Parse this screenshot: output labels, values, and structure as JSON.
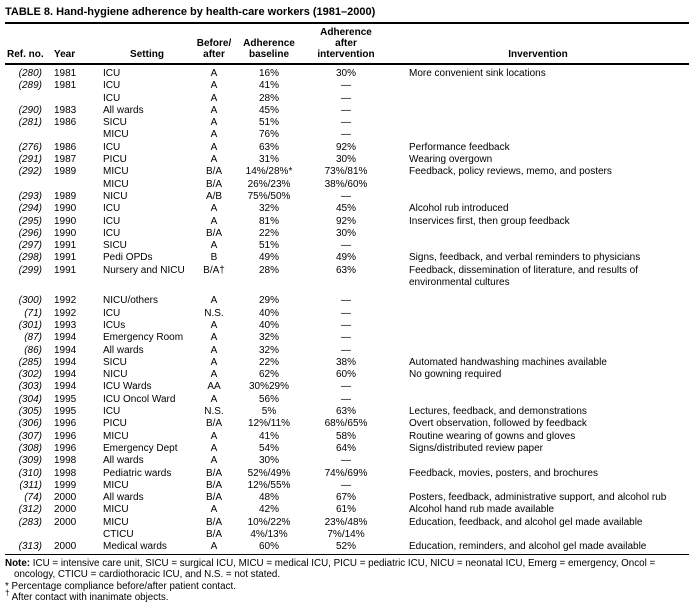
{
  "title": "TABLE 8. Hand-hygiene adherence by health-care workers (1981–2000)",
  "header": {
    "ref": "Ref. no.",
    "year": "Year",
    "setting": "Setting",
    "before_after": "Before/\nafter",
    "baseline": "Adherence\nbaseline",
    "after_intervention": "Adherence\nafter\nintervention",
    "intervention": "Invervention"
  },
  "rows": [
    {
      "ref": "(280)",
      "year": "1981",
      "setting": "ICU",
      "ba": "A",
      "base": "16%",
      "after": "30%",
      "int": "More convenient sink locations"
    },
    {
      "ref": "(289)",
      "year": "1981",
      "setting": "ICU",
      "ba": "A",
      "base": "41%",
      "after": "—",
      "int": ""
    },
    {
      "ref": "",
      "year": "",
      "setting": "ICU",
      "ba": "A",
      "base": "28%",
      "after": "—",
      "int": ""
    },
    {
      "ref": "(290)",
      "year": "1983",
      "setting": "All wards",
      "ba": "A",
      "base": "45%",
      "after": "—",
      "int": ""
    },
    {
      "ref": "(281)",
      "year": "1986",
      "setting": "SICU",
      "ba": "A",
      "base": "51%",
      "after": "—",
      "int": ""
    },
    {
      "ref": "",
      "year": "",
      "setting": "MICU",
      "ba": "A",
      "base": "76%",
      "after": "—",
      "int": ""
    },
    {
      "ref": "(276)",
      "year": "1986",
      "setting": "ICU",
      "ba": "A",
      "base": "63%",
      "after": "92%",
      "int": "Performance feedback"
    },
    {
      "ref": "(291)",
      "year": "1987",
      "setting": "PICU",
      "ba": "A",
      "base": "31%",
      "after": "30%",
      "int": "Wearing overgown"
    },
    {
      "ref": "(292)",
      "year": "1989",
      "setting": "MICU",
      "ba": "B/A",
      "base": "14%/28%*",
      "after": "73%/81%",
      "int": "Feedback, policy reviews, memo, and posters"
    },
    {
      "ref": "",
      "year": "",
      "setting": "MICU",
      "ba": "B/A",
      "base": "26%/23%",
      "after": "38%/60%",
      "int": ""
    },
    {
      "ref": "(293)",
      "year": "1989",
      "setting": "NICU",
      "ba": "A/B",
      "base": "75%/50%",
      "after": "—",
      "int": ""
    },
    {
      "ref": "(294)",
      "year": "1990",
      "setting": "ICU",
      "ba": "A",
      "base": "32%",
      "after": "45%",
      "int": "Alcohol rub introduced"
    },
    {
      "ref": "(295)",
      "year": "1990",
      "setting": "ICU",
      "ba": "A",
      "base": "81%",
      "after": "92%",
      "int": "Inservices first, then group feedback"
    },
    {
      "ref": "(296)",
      "year": "1990",
      "setting": "ICU",
      "ba": "B/A",
      "base": "22%",
      "after": "30%",
      "int": ""
    },
    {
      "ref": "(297)",
      "year": "1991",
      "setting": "SICU",
      "ba": "A",
      "base": "51%",
      "after": "—",
      "int": ""
    },
    {
      "ref": "(298)",
      "year": "1991",
      "setting": "Pedi OPDs",
      "ba": "B",
      "base": "49%",
      "after": "49%",
      "int": "Signs, feedback, and verbal reminders to physicians"
    },
    {
      "ref": "(299)",
      "year": "1991",
      "setting": "Nursery and NICU",
      "ba": "B/A†",
      "base": "28%",
      "after": "63%",
      "int": "Feedback, dissemination of literature, and results of environmental cultures",
      "gap": true
    },
    {
      "ref": "(300)",
      "year": "1992",
      "setting": "NICU/others",
      "ba": "A",
      "base": "29%",
      "after": "—",
      "int": ""
    },
    {
      "ref": "(71)",
      "year": "1992",
      "setting": "ICU",
      "ba": "N.S.",
      "base": "40%",
      "after": "—",
      "int": ""
    },
    {
      "ref": "(301)",
      "year": "1993",
      "setting": "ICUs",
      "ba": "A",
      "base": "40%",
      "after": "—",
      "int": ""
    },
    {
      "ref": "(87)",
      "year": "1994",
      "setting": "Emergency Room",
      "ba": "A",
      "base": "32%",
      "after": "—",
      "int": ""
    },
    {
      "ref": "(86)",
      "year": "1994",
      "setting": "All wards",
      "ba": "A",
      "base": "32%",
      "after": "—",
      "int": ""
    },
    {
      "ref": "(285)",
      "year": "1994",
      "setting": "SICU",
      "ba": "A",
      "base": "22%",
      "after": "38%",
      "int": "Automated handwashing machines available"
    },
    {
      "ref": "(302)",
      "year": "1994",
      "setting": "NICU",
      "ba": "A",
      "base": "62%",
      "after": "60%",
      "int": "No gowning required"
    },
    {
      "ref": "(303)",
      "year": "1994",
      "setting": "ICU Wards",
      "ba": "AA",
      "base": "30%29%",
      "after": "—",
      "int": ""
    },
    {
      "ref": "(304)",
      "year": "1995",
      "setting": "ICU Oncol Ward",
      "ba": "A",
      "base": "56%",
      "after": "—",
      "int": ""
    },
    {
      "ref": "(305)",
      "year": "1995",
      "setting": "ICU",
      "ba": "N.S.",
      "base": "5%",
      "after": "63%",
      "int": "Lectures, feedback, and demonstrations"
    },
    {
      "ref": "(306)",
      "year": "1996",
      "setting": "PICU",
      "ba": "B/A",
      "base": "12%/11%",
      "after": "68%/65%",
      "int": "Overt observation, followed by feedback"
    },
    {
      "ref": "(307)",
      "year": "1996",
      "setting": "MICU",
      "ba": "A",
      "base": "41%",
      "after": "58%",
      "int": "Routine wearing of gowns and gloves"
    },
    {
      "ref": "(308)",
      "year": "1996",
      "setting": "Emergency Dept",
      "ba": "A",
      "base": "54%",
      "after": "64%",
      "int": "Signs/distributed review paper"
    },
    {
      "ref": "(309)",
      "year": "1998",
      "setting": "All wards",
      "ba": "A",
      "base": "30%",
      "after": "—",
      "int": ""
    },
    {
      "ref": "(310)",
      "year": "1998",
      "setting": "Pediatric wards",
      "ba": "B/A",
      "base": "52%/49%",
      "after": "74%/69%",
      "int": "Feedback, movies, posters, and brochures"
    },
    {
      "ref": "(311)",
      "year": "1999",
      "setting": "MICU",
      "ba": "B/A",
      "base": "12%/55%",
      "after": "—",
      "int": ""
    },
    {
      "ref": "(74)",
      "year": "2000",
      "setting": "All wards",
      "ba": "B/A",
      "base": "48%",
      "after": "67%",
      "int": "Posters, feedback, administrative support, and alcohol rub"
    },
    {
      "ref": "(312)",
      "year": "2000",
      "setting": "MICU",
      "ba": "A",
      "base": "42%",
      "after": "61%",
      "int": "Alcohol hand rub made available"
    },
    {
      "ref": "(283)",
      "year": "2000",
      "setting": "MICU",
      "ba": "B/A",
      "base": "10%/22%",
      "after": "23%/48%",
      "int": "Education, feedback, and alcohol gel made available"
    },
    {
      "ref": "",
      "year": "",
      "setting": "CTICU",
      "ba": "B/A",
      "base": "4%/13%",
      "after": "7%/14%",
      "int": ""
    },
    {
      "ref": "(313)",
      "year": "2000",
      "setting": "Medical wards",
      "ba": "A",
      "base": "60%",
      "after": "52%",
      "int": "Education, reminders, and alcohol gel made available"
    }
  ],
  "footnotes": {
    "note_label": "Note:",
    "note_text": "ICU = intensive care unit, SICU = surgical ICU, MICU = medical ICU, PICU = pediatric ICU, NICU = neonatal ICU, Emerg = emergency, Oncol = oncology, CTICU = cardiothoracic ICU, and N.S. = not stated.",
    "asterisk": "* Percentage compliance before/after patient contact.",
    "dagger_symbol": "†",
    "dagger_text": "After contact with inanimate objects."
  }
}
